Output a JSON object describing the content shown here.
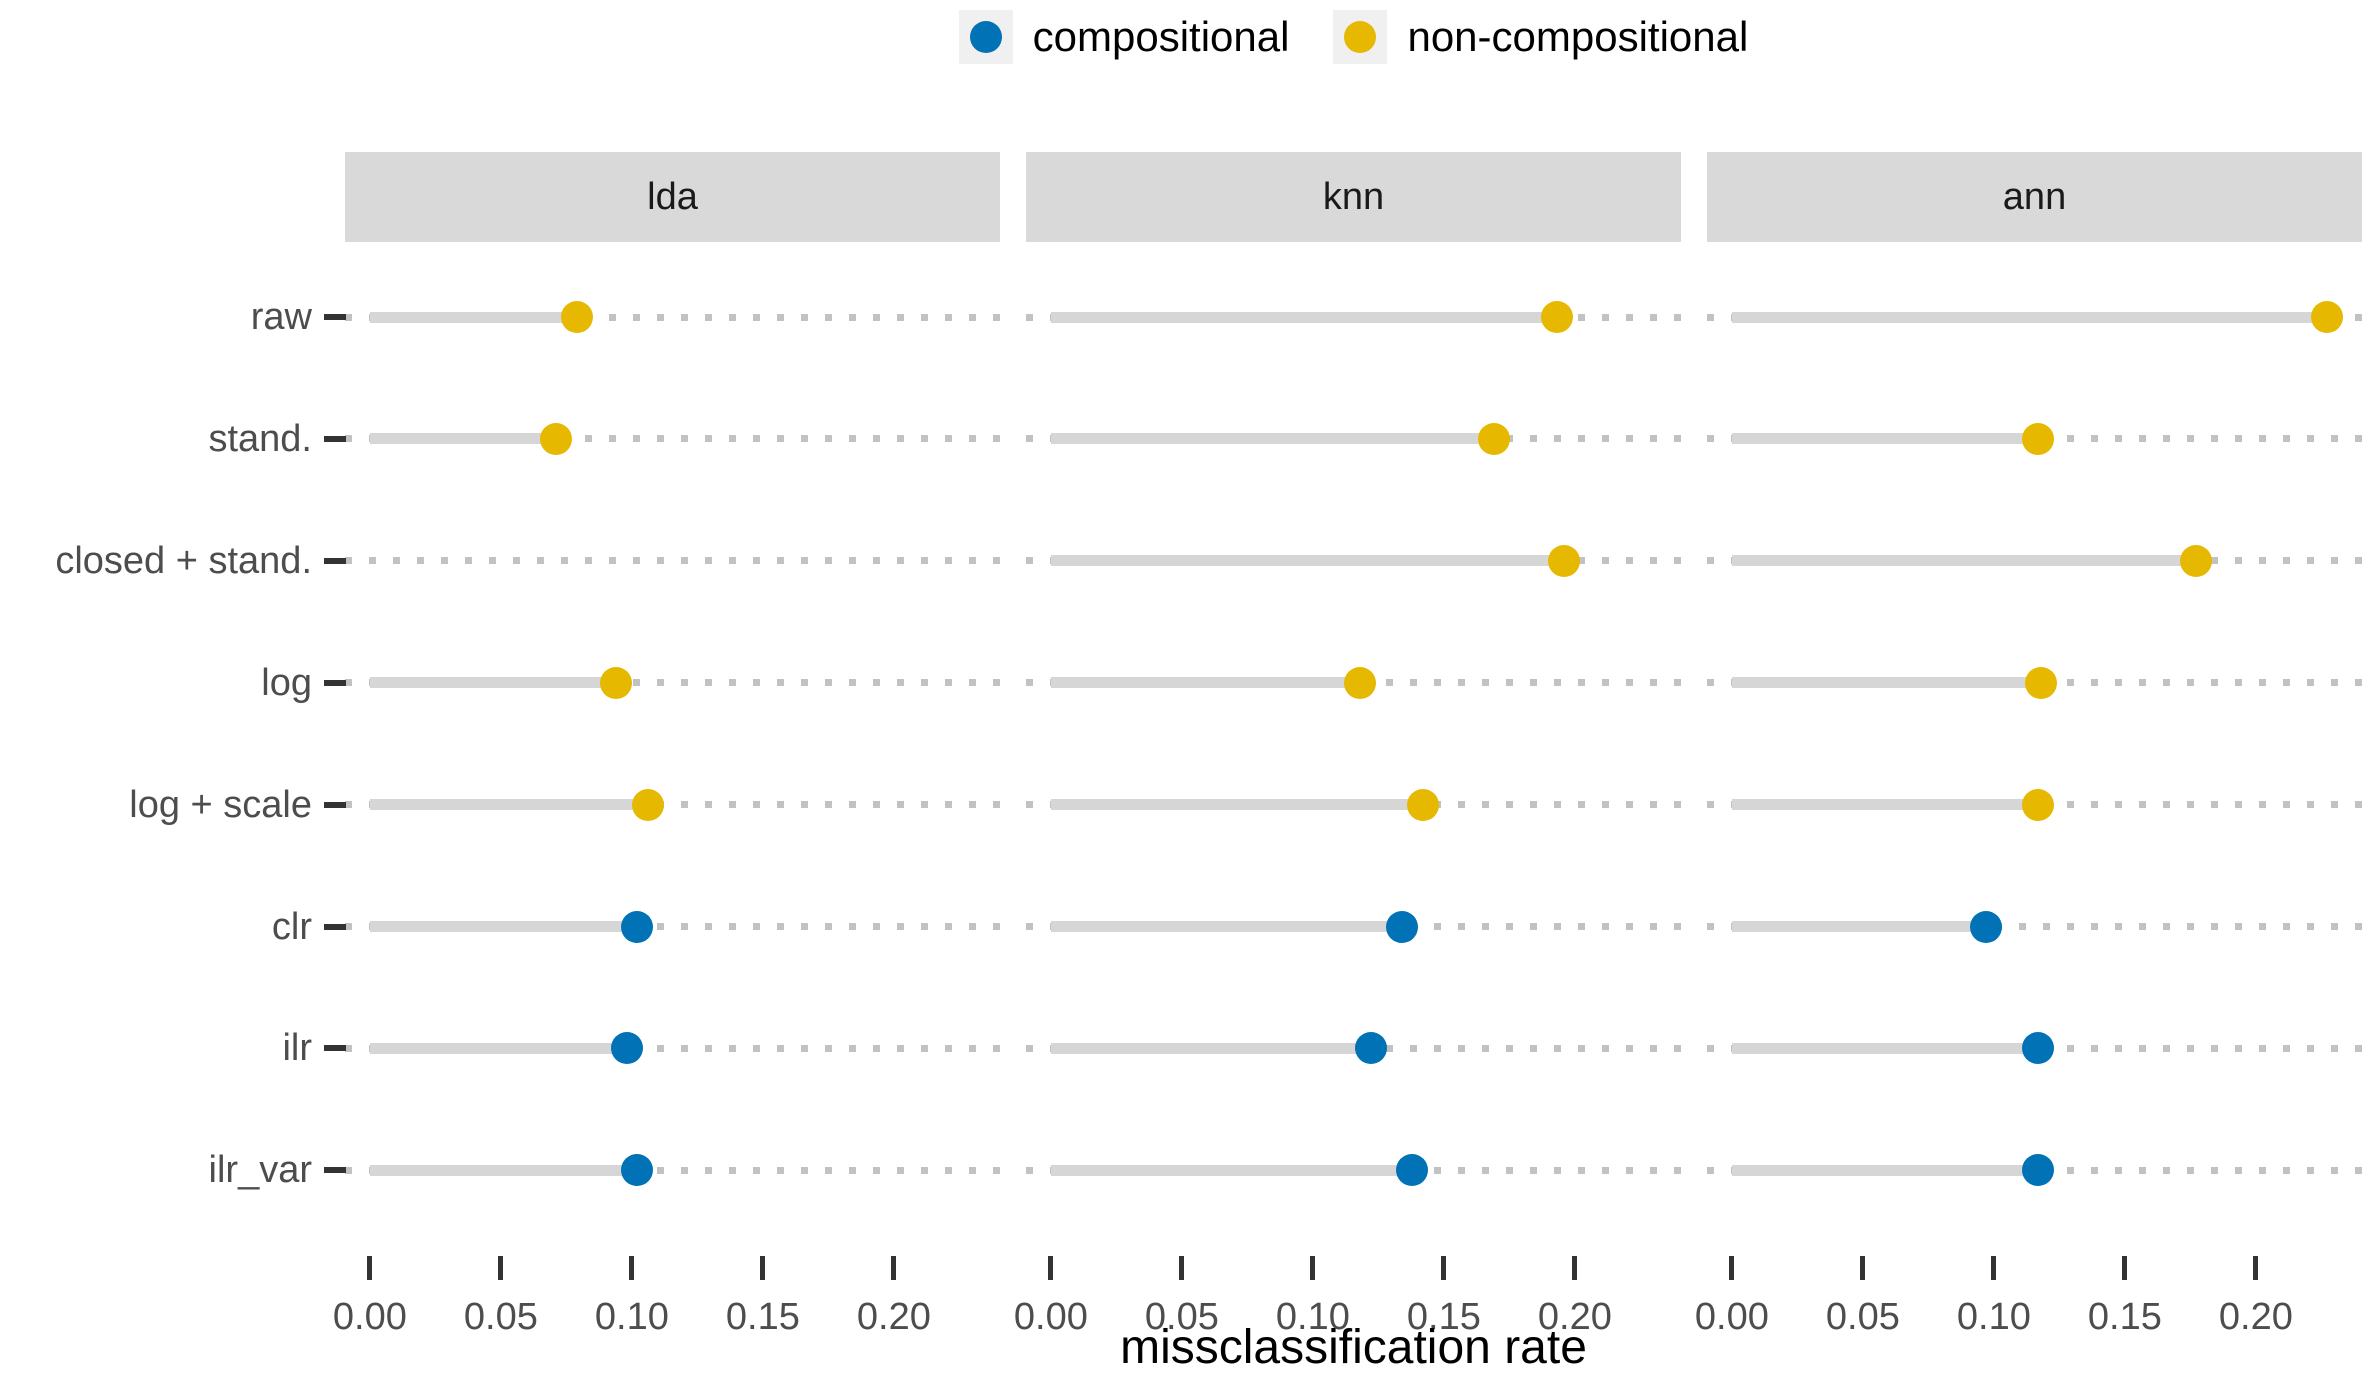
{
  "legend": {
    "items": [
      {
        "label": "compositional",
        "color": "#0072B5"
      },
      {
        "label": "non-compositional",
        "color": "#E7B800"
      }
    ]
  },
  "chart_data": {
    "type": "scatter",
    "variant": "faceted Cleveland dot plot / lollipop with dotted guide lines",
    "facets": [
      "lda",
      "knn",
      "ann"
    ],
    "categories": [
      "raw",
      "stand.",
      "closed + stand.",
      "log",
      "log + scale",
      "clr",
      "ilr",
      "ilr_var"
    ],
    "category_series": [
      "non-compositional",
      "non-compositional",
      "non-compositional",
      "non-compositional",
      "non-compositional",
      "compositional",
      "compositional",
      "compositional"
    ],
    "series": [
      {
        "name": "compositional",
        "color": "#0072B5"
      },
      {
        "name": "non-compositional",
        "color": "#E7B800"
      }
    ],
    "values": {
      "lda": [
        0.079,
        0.071,
        null,
        0.094,
        0.106,
        0.102,
        0.098,
        0.102
      ],
      "knn": [
        0.193,
        0.169,
        0.196,
        0.118,
        0.142,
        0.134,
        0.122,
        0.138
      ],
      "ann": [
        0.227,
        0.117,
        0.177,
        0.118,
        0.117,
        0.097,
        0.117,
        0.117
      ]
    },
    "missing_points": [
      {
        "facet": "lda",
        "category": "closed + stand."
      }
    ],
    "xlabel": "missclassification rate",
    "x_ticks": [
      0,
      0.05,
      0.1,
      0.15,
      0.2
    ],
    "x_tick_labels": [
      "0.00",
      "0.05",
      "0.10",
      "0.15",
      "0.20"
    ],
    "xlim": [
      -0.0095,
      0.2405
    ],
    "legend_position": "top",
    "grid": "dotted horizontal guide per row, no panel border"
  },
  "colors": {
    "background": "#FFFFFF",
    "strip_bg": "#D9D9D9",
    "strip_text": "#1A1A1A",
    "axis_text": "#4D4D4D",
    "tick_mark": "#333333",
    "solid_line": "#D6D6D6",
    "dotted_line": "#C2C2C2",
    "legend_key_bg": "#F0F0F0"
  }
}
